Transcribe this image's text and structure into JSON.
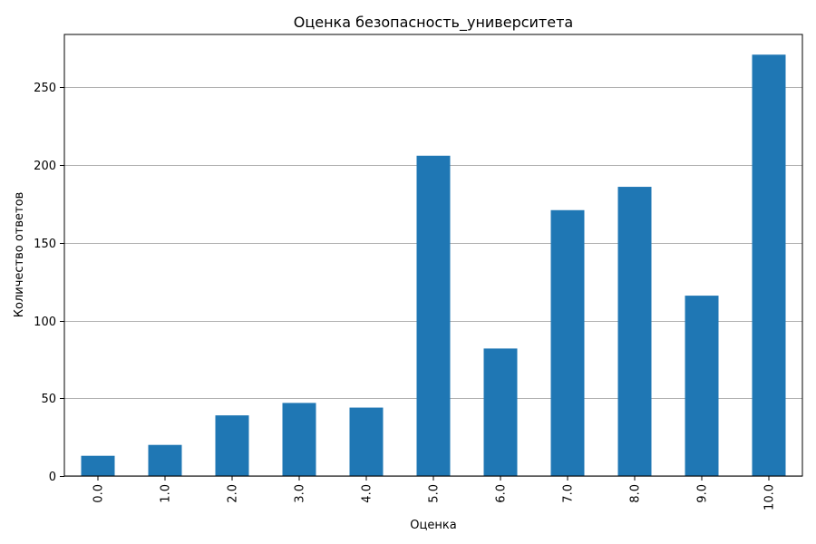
{
  "chart_data": {
    "type": "bar",
    "title": "Оценка безопасность_университета",
    "xlabel": "Оценка",
    "ylabel": "Количество ответов",
    "categories": [
      "0.0",
      "1.0",
      "2.0",
      "3.0",
      "4.0",
      "5.0",
      "6.0",
      "7.0",
      "8.0",
      "9.0",
      "10.0"
    ],
    "values": [
      13,
      20,
      39,
      47,
      44,
      206,
      82,
      171,
      186,
      116,
      271
    ],
    "ylim": [
      0,
      284
    ],
    "yticks": [
      0,
      50,
      100,
      150,
      200,
      250
    ],
    "grid": "horizontal",
    "legend": "none",
    "x_tick_rotation": "vertical",
    "colors": {
      "bar": "#1f77b4",
      "grid": "#b0b0b0",
      "axis": "#000000",
      "background": "#ffffff"
    }
  }
}
